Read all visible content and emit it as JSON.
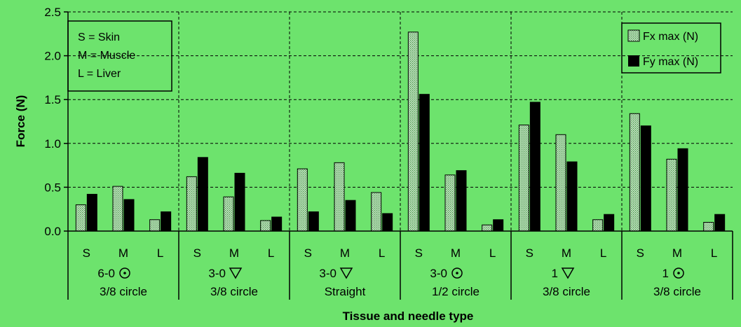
{
  "chart_data": {
    "type": "bar",
    "ylabel": "Force (N)",
    "xlabel": "Tissue and needle type",
    "ylim": [
      0,
      2.5
    ],
    "yticks": [
      "0.0",
      "0.5",
      "1.0",
      "1.5",
      "2.0",
      "2.5"
    ],
    "grid": true,
    "tissue_key": [
      "S = Skin",
      "M = Muscle",
      "L = Liver"
    ],
    "groups": [
      {
        "needle": "6-0",
        "symbol": "circle-dot",
        "shape": "3/8 circle",
        "tissues": [
          "S",
          "M",
          "L"
        ]
      },
      {
        "needle": "3-0",
        "symbol": "triangle-down",
        "shape": "3/8 circle",
        "tissues": [
          "S",
          "M",
          "L"
        ]
      },
      {
        "needle": "3-0",
        "symbol": "triangle-down",
        "shape": "Straight",
        "tissues": [
          "S",
          "M",
          "L"
        ]
      },
      {
        "needle": "3-0",
        "symbol": "circle-dot",
        "shape": "1/2 circle",
        "tissues": [
          "S",
          "M",
          "L"
        ]
      },
      {
        "needle": "1",
        "symbol": "triangle-down",
        "shape": "3/8 circle",
        "tissues": [
          "S",
          "M",
          "L"
        ]
      },
      {
        "needle": "1",
        "symbol": "circle-dot",
        "shape": "3/8 circle",
        "tissues": [
          "S",
          "M",
          "L"
        ]
      }
    ],
    "series": [
      {
        "name": "Fx max (N)",
        "fill": "dotted",
        "values": [
          0.3,
          0.51,
          0.13,
          0.62,
          0.39,
          0.12,
          0.71,
          0.78,
          0.44,
          2.27,
          0.64,
          0.07,
          1.21,
          1.1,
          0.13,
          1.34,
          0.82,
          0.1
        ]
      },
      {
        "name": "Fy max (N)",
        "fill": "solid",
        "values": [
          0.42,
          0.36,
          0.22,
          0.84,
          0.66,
          0.16,
          0.22,
          0.35,
          0.2,
          1.56,
          0.69,
          0.13,
          1.47,
          0.79,
          0.19,
          1.2,
          0.94,
          0.19
        ]
      }
    ],
    "legend": "top-right"
  },
  "colors": {
    "background": "#6de36d",
    "fx_fill": "#c6e6c6",
    "fx_dot": "#3f8f3f",
    "fy_fill": "#000000"
  }
}
